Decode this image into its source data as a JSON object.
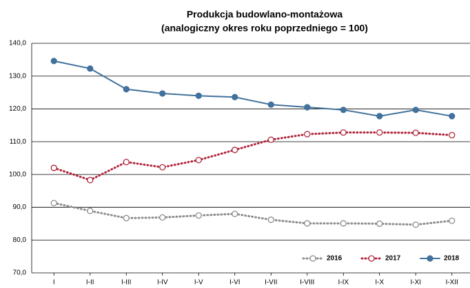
{
  "chart_data": {
    "type": "line",
    "title": "Produkcja budowlano-montażowa",
    "subtitle": "(analogiczny okres roku poprzedniego = 100)",
    "categories": [
      "I",
      "I-II",
      "I-III",
      "I-IV",
      "I-V",
      "I-VI",
      "I-VII",
      "I-VIII",
      "I-IX",
      "I-X",
      "I-XI",
      "I-XII"
    ],
    "series": [
      {
        "name": "2016",
        "color": "#8c8c8c",
        "style": "dotted",
        "marker": "open",
        "values": [
          91.3,
          88.9,
          86.7,
          86.9,
          87.5,
          88.0,
          86.2,
          85.1,
          85.1,
          85.0,
          84.7,
          85.9
        ]
      },
      {
        "name": "2017",
        "color": "#b0243a",
        "style": "dotted",
        "marker": "open",
        "values": [
          102.0,
          98.3,
          103.8,
          102.2,
          104.4,
          107.5,
          110.6,
          112.3,
          112.8,
          112.8,
          112.7,
          112.0
        ]
      },
      {
        "name": "2018",
        "color": "#41719c",
        "style": "solid",
        "marker": "filled",
        "values": [
          134.6,
          132.3,
          126.0,
          124.7,
          124.0,
          123.6,
          121.3,
          120.5,
          119.7,
          117.8,
          119.7,
          117.8
        ]
      }
    ],
    "ylim": [
      70,
      140
    ],
    "yticks": [
      {
        "value": 70,
        "label": "70,0"
      },
      {
        "value": 80,
        "label": "80,0"
      },
      {
        "value": 90,
        "label": "90,0"
      },
      {
        "value": 100,
        "label": "100,0"
      },
      {
        "value": 110,
        "label": "110,0"
      },
      {
        "value": 120,
        "label": "120,0"
      },
      {
        "value": 130,
        "label": "130,0"
      },
      {
        "value": 140,
        "label": "140,0"
      }
    ],
    "grid": true,
    "legend": "bottom-right"
  }
}
